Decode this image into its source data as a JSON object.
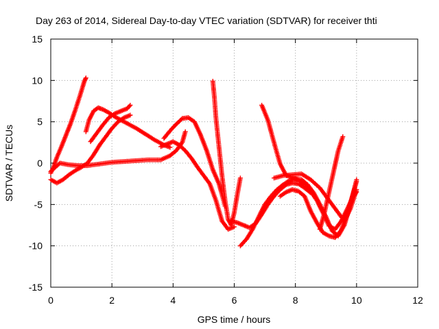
{
  "chart_data": {
    "type": "scatter",
    "title": "Day 263 of 2014, Sidereal Day-to-day VTEC variation (SDTVAR) for receiver thti",
    "xlabel": "GPS time / hours",
    "ylabel": "SDTVAR / TECUs",
    "xlim": [
      0,
      12
    ],
    "ylim": [
      -15,
      15
    ],
    "xticks": [
      0,
      2,
      4,
      6,
      8,
      10,
      12
    ],
    "yticks": [
      -15,
      -10,
      -5,
      0,
      5,
      10,
      15
    ],
    "grid": true,
    "marker": "plus",
    "color": "#ff0000",
    "series": [
      {
        "x": [
          0.0,
          0.1,
          0.2,
          0.35,
          0.5,
          0.65,
          0.8,
          0.95,
          1.1,
          1.15
        ],
        "y": [
          -1.2,
          -0.4,
          0.7,
          2.0,
          3.4,
          4.8,
          6.4,
          8.1,
          9.9,
          10.3
        ]
      },
      {
        "x": [
          1.15,
          1.25,
          1.4,
          1.55,
          1.7,
          1.9,
          2.1,
          2.3,
          2.5,
          2.8,
          3.1,
          3.4,
          3.7,
          3.9
        ],
        "y": [
          3.8,
          5.2,
          6.3,
          6.7,
          6.5,
          6.1,
          5.6,
          5.2,
          4.8,
          4.2,
          3.5,
          2.8,
          2.2,
          1.9
        ]
      },
      {
        "x": [
          1.3,
          1.5,
          1.7,
          1.9,
          2.1,
          2.3,
          2.5,
          2.6
        ],
        "y": [
          2.6,
          3.6,
          4.6,
          5.5,
          6.0,
          6.3,
          6.6,
          7.0
        ]
      },
      {
        "x": [
          0.0,
          0.2,
          0.4,
          0.6,
          0.8,
          1.0,
          1.2,
          1.4,
          1.6,
          1.8,
          2.0,
          2.2,
          2.4,
          2.6
        ],
        "y": [
          -2.0,
          -2.4,
          -2.0,
          -1.4,
          -0.9,
          -0.5,
          0.0,
          1.0,
          2.2,
          3.2,
          4.2,
          5.0,
          5.5,
          5.8
        ]
      },
      {
        "x": [
          0.0,
          0.3,
          0.6,
          0.9,
          1.2,
          1.6,
          2.0,
          2.4,
          2.8,
          3.2,
          3.6,
          3.9,
          4.1,
          4.3,
          4.4
        ],
        "y": [
          -1.0,
          0.0,
          -0.2,
          -0.3,
          -0.3,
          -0.1,
          0.1,
          0.2,
          0.3,
          0.4,
          0.4,
          0.9,
          1.5,
          2.5,
          3.8
        ]
      },
      {
        "x": [
          3.7,
          3.9,
          4.1,
          4.3,
          4.5,
          4.7,
          4.9,
          5.1,
          5.3,
          5.5,
          5.6,
          5.7
        ],
        "y": [
          3.0,
          3.9,
          4.7,
          5.4,
          5.5,
          5.0,
          3.4,
          1.5,
          -0.8,
          -2.5,
          -3.8,
          -5.2
        ]
      },
      {
        "x": [
          3.6,
          3.8,
          4.0,
          4.2,
          4.4,
          4.6,
          4.8,
          5.0,
          5.2,
          5.4,
          5.6,
          5.8,
          6.0
        ],
        "y": [
          2.0,
          2.3,
          2.6,
          2.2,
          1.5,
          0.6,
          -0.5,
          -1.5,
          -2.5,
          -4.5,
          -7.0,
          -8.0,
          -7.7
        ]
      },
      {
        "x": [
          5.3,
          5.35,
          5.4,
          5.5,
          5.6,
          5.7,
          5.8,
          5.9,
          6.0,
          6.1,
          6.2
        ],
        "y": [
          9.9,
          8.0,
          5.5,
          2.0,
          -1.5,
          -4.5,
          -6.8,
          -7.5,
          -6.0,
          -3.8,
          -1.8
        ]
      },
      {
        "x": [
          5.9,
          6.1,
          6.3,
          6.5,
          6.7,
          6.9,
          7.1,
          7.3,
          7.5,
          7.7,
          7.9,
          8.1,
          8.3,
          8.5
        ],
        "y": [
          -7.0,
          -7.2,
          -7.5,
          -7.8,
          -7.3,
          -6.2,
          -5.0,
          -4.0,
          -3.2,
          -2.6,
          -2.4,
          -2.5,
          -3.0,
          -3.6
        ]
      },
      {
        "x": [
          6.2,
          6.4,
          6.6,
          6.8,
          7.0,
          7.2,
          7.4,
          7.6,
          7.8,
          8.0,
          8.2,
          8.4,
          8.6,
          8.8,
          9.0,
          9.2,
          9.4,
          9.6,
          9.8,
          10.0
        ],
        "y": [
          -10.0,
          -9.2,
          -8.0,
          -6.5,
          -5.0,
          -4.0,
          -3.2,
          -2.6,
          -2.1,
          -1.9,
          -2.0,
          -2.6,
          -3.6,
          -5.0,
          -6.5,
          -8.2,
          -8.8,
          -7.5,
          -5.0,
          -2.0
        ]
      },
      {
        "x": [
          6.9,
          7.1,
          7.3,
          7.5,
          7.7,
          7.9,
          8.1,
          8.3,
          8.5,
          8.7,
          8.9,
          9.1,
          9.3,
          9.5,
          9.7,
          9.9,
          10.0
        ],
        "y": [
          7.0,
          5.2,
          2.5,
          -0.1,
          -1.5,
          -1.7,
          -2.1,
          -2.6,
          -3.4,
          -4.5,
          -6.0,
          -7.6,
          -8.0,
          -7.0,
          -5.5,
          -4.0,
          -3.5
        ]
      },
      {
        "x": [
          7.5,
          7.7,
          7.9,
          8.1,
          8.3,
          8.5,
          8.7,
          8.9,
          9.1,
          9.3,
          9.5,
          9.7,
          9.9,
          10.0
        ],
        "y": [
          -4.0,
          -3.5,
          -3.2,
          -3.4,
          -4.0,
          -5.8,
          -7.2,
          -8.4,
          -8.8,
          -9.0,
          -8.1,
          -6.0,
          -3.5,
          -2.2
        ]
      },
      {
        "x": [
          7.3,
          7.6,
          7.9,
          8.2,
          8.5,
          8.8,
          9.0,
          9.2,
          9.4,
          9.6,
          9.8,
          10.0
        ],
        "y": [
          -1.8,
          -1.5,
          -1.4,
          -1.3,
          -2.0,
          -3.0,
          -4.0,
          -5.0,
          -6.0,
          -7.0,
          -5.5,
          -3.2
        ]
      },
      {
        "x": [
          8.8,
          8.95,
          9.1,
          9.25,
          9.4,
          9.55
        ],
        "y": [
          -8.0,
          -6.0,
          -3.5,
          -1.0,
          1.5,
          3.2
        ]
      }
    ]
  }
}
